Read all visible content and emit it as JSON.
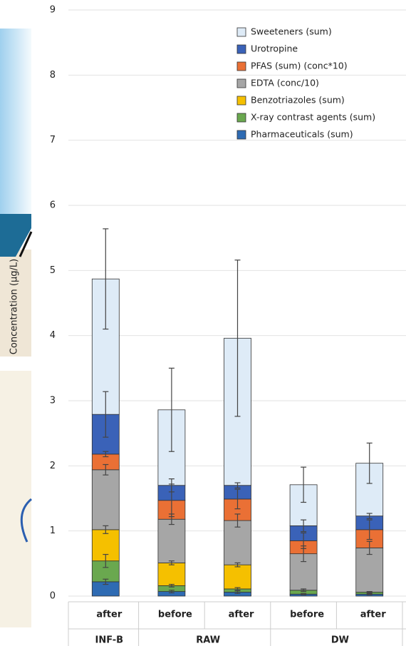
{
  "chart_data": {
    "type": "stacked-bar",
    "ylabel": "Concentration (µg/L)",
    "categories": [
      "after",
      "before",
      "after",
      "before",
      "after"
    ],
    "groups": [
      {
        "name": "INF-B",
        "span": 1
      },
      {
        "name": "RAW",
        "span": 2
      },
      {
        "name": "DW",
        "span": 2
      }
    ],
    "ylim": [
      0,
      9
    ],
    "yticks": [
      0,
      1,
      2,
      3,
      4,
      5,
      6,
      7,
      8,
      9
    ],
    "grid": true,
    "legend": "upper right",
    "series": [
      {
        "name": "Pharmaceuticals (sum)",
        "color": "#2e6bb3",
        "values": [
          0.22,
          0.07,
          0.06,
          0.03,
          0.03
        ],
        "errors": [
          0.04,
          0.02,
          0.02,
          0.01,
          0.01
        ]
      },
      {
        "name": "X-ray contrast agents (sum)",
        "color": "#6aa84f",
        "values": [
          0.32,
          0.09,
          0.05,
          0.06,
          0.03
        ],
        "errors": [
          0.1,
          0.02,
          0.02,
          0.02,
          0.01
        ]
      },
      {
        "name": "Benzotriazoles (sum)",
        "color": "#f5c000",
        "values": [
          0.48,
          0.35,
          0.37,
          0,
          0
        ],
        "errors": [
          0.06,
          0.03,
          0.03,
          0,
          0
        ]
      },
      {
        "name": "EDTA (conc/10)",
        "color": "#a6a6a6",
        "values": [
          0.92,
          0.67,
          0.68,
          0.56,
          0.68
        ],
        "errors": [
          0.08,
          0.08,
          0.1,
          0.12,
          0.1
        ]
      },
      {
        "name": "PFAS (sum) (conc*10)",
        "color": "#ea7035",
        "values": [
          0.24,
          0.29,
          0.33,
          0.2,
          0.28
        ],
        "errors": [
          0.04,
          0.25,
          0.15,
          0.12,
          0.15
        ]
      },
      {
        "name": "Urotropine",
        "color": "#3a62b8",
        "values": [
          0.61,
          0.23,
          0.21,
          0.23,
          0.21
        ],
        "errors": [
          0.35,
          0.1,
          0.04,
          0.09,
          0.04
        ]
      },
      {
        "name": "Sweeteners (sum)",
        "color": "#deebf7",
        "values": [
          2.08,
          1.16,
          2.26,
          0.63,
          0.81
        ],
        "errors": [
          0.77,
          0.64,
          1.2,
          0.27,
          0.31
        ]
      }
    ]
  }
}
